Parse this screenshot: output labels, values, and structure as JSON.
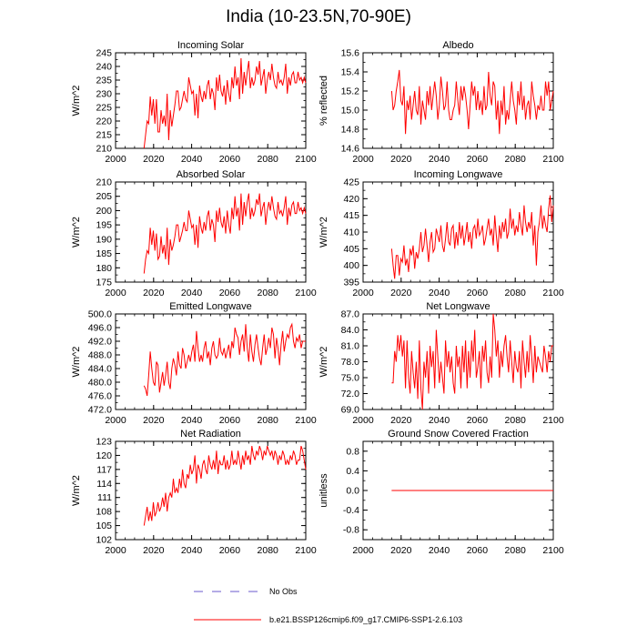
{
  "figure": {
    "title": "India (10-23.5N,70-90E)",
    "line_color": "#ff0000",
    "obs_color": "#6a5acd",
    "legend": [
      {
        "label": "No Obs",
        "style": "dashed",
        "color": "#6a5acd"
      },
      {
        "label": "b.e21.BSSP126cmip6.f09_g17.CMIP6-SSP1-2.6.103",
        "style": "solid",
        "color": "#ff0000"
      }
    ]
  },
  "chart_data": [
    {
      "type": "line",
      "title": "Incoming Solar",
      "xlabel": "",
      "ylabel": "W/m^2",
      "xlim": [
        2000,
        2100
      ],
      "ylim": [
        210,
        245
      ],
      "xticks": [
        2000,
        2020,
        2040,
        2060,
        2080,
        2100
      ],
      "yticks": [
        210,
        215,
        220,
        225,
        230,
        235,
        240,
        245
      ],
      "yticklabels": [
        "210",
        "215",
        "220",
        "225",
        "230",
        "235",
        "240",
        "245"
      ],
      "x_start": 2015,
      "values": [
        210,
        215,
        220,
        219,
        229,
        222,
        228,
        219,
        228,
        216,
        216,
        224,
        219,
        222,
        218,
        230,
        213,
        224,
        218,
        222,
        226,
        231,
        231,
        224,
        225,
        228,
        231,
        228,
        227,
        236,
        233,
        230,
        231,
        222,
        230,
        221,
        233,
        229,
        227,
        231,
        228,
        233,
        235,
        228,
        232,
        230,
        224,
        236,
        231,
        237,
        231,
        229,
        233,
        226,
        235,
        230,
        227,
        236,
        232,
        240,
        233,
        236,
        228,
        243,
        230,
        238,
        233,
        238,
        242,
        232,
        236,
        233,
        235,
        240,
        237,
        242,
        233,
        236,
        239,
        230,
        235,
        238,
        235,
        241,
        236,
        233,
        232,
        238,
        234,
        235,
        233,
        236,
        241,
        230,
        236,
        233,
        237,
        238,
        234,
        234,
        238,
        235,
        236,
        234,
        236,
        234
      ]
    },
    {
      "type": "line",
      "title": "Albedo",
      "xlabel": "",
      "ylabel": "% reflected",
      "xlim": [
        2000,
        2100
      ],
      "ylim": [
        14.6,
        15.6
      ],
      "xticks": [
        2000,
        2020,
        2040,
        2060,
        2080,
        2100
      ],
      "yticks": [
        14.6,
        14.8,
        15.0,
        15.2,
        15.4,
        15.6
      ],
      "yticklabels": [
        "14.6",
        "14.8",
        "15.0",
        "15.2",
        "15.4",
        "15.6"
      ],
      "x_start": 2015,
      "values": [
        15.2,
        15.0,
        15.05,
        15.2,
        15.3,
        15.42,
        15.1,
        15.05,
        15.25,
        14.75,
        15.1,
        15.0,
        15.15,
        14.9,
        15.05,
        15.2,
        15.0,
        14.95,
        15.25,
        14.85,
        15.1,
        15.0,
        14.9,
        15.2,
        15.05,
        15.25,
        15.0,
        15.15,
        15.3,
        15.15,
        14.9,
        15.05,
        15.35,
        15.2,
        15.0,
        15.05,
        15.3,
        15.0,
        14.9,
        14.9,
        15.0,
        15.05,
        15.3,
        15.1,
        14.95,
        15.25,
        15.1,
        15.25,
        15.15,
        15.0,
        14.8,
        15.05,
        15.3,
        15.15,
        15.25,
        15.0,
        15.2,
        15.0,
        15.1,
        14.95,
        15.25,
        15.0,
        15.05,
        15.4,
        15.15,
        15.05,
        15.3,
        15.25,
        14.9,
        15.1,
        14.75,
        15.1,
        14.95,
        15.25,
        14.85,
        15.0,
        14.9,
        15.1,
        15.3,
        15.1,
        15.0,
        14.85,
        15.2,
        15.05,
        15.3,
        15.0,
        15.15,
        14.9,
        15.05,
        15.1,
        14.9,
        15.3,
        15.15,
        15.05,
        14.9,
        15.05,
        15.0,
        15.15,
        15.0,
        15.0,
        15.3,
        15.15,
        15.3,
        15.0,
        15.1,
        15.2
      ]
    },
    {
      "type": "line",
      "title": "Absorbed Solar",
      "xlabel": "",
      "ylabel": "W/m^2",
      "xlim": [
        2000,
        2100
      ],
      "ylim": [
        175,
        210
      ],
      "xticks": [
        2000,
        2020,
        2040,
        2060,
        2080,
        2100
      ],
      "yticks": [
        175,
        180,
        185,
        190,
        195,
        200,
        205,
        210
      ],
      "yticklabels": [
        "175",
        "180",
        "185",
        "190",
        "195",
        "200",
        "205",
        "210"
      ],
      "x_start": 2015,
      "values": [
        178,
        183,
        186,
        185,
        194,
        188,
        193,
        186,
        192,
        183,
        184,
        191,
        185,
        188,
        183,
        194,
        181,
        190,
        186,
        188,
        191,
        195,
        195,
        189,
        191,
        193,
        196,
        193,
        193,
        200,
        197,
        194,
        195,
        188,
        195,
        187,
        198,
        194,
        192,
        196,
        193,
        198,
        200,
        193,
        197,
        195,
        189,
        200,
        196,
        201,
        196,
        194,
        198,
        192,
        200,
        195,
        192,
        201,
        197,
        205,
        198,
        201,
        193,
        206,
        195,
        203,
        198,
        203,
        206,
        197,
        201,
        198,
        200,
        204,
        202,
        206,
        198,
        201,
        203,
        195,
        200,
        203,
        200,
        205,
        201,
        198,
        197,
        203,
        199,
        200,
        198,
        201,
        205,
        195,
        201,
        198,
        202,
        203,
        199,
        199,
        203,
        200,
        201,
        199,
        201,
        199
      ]
    },
    {
      "type": "line",
      "title": "Incoming Longwave",
      "xlabel": "",
      "ylabel": "W/m^2",
      "xlim": [
        2000,
        2100
      ],
      "ylim": [
        395,
        425
      ],
      "xticks": [
        2000,
        2020,
        2040,
        2060,
        2080,
        2100
      ],
      "yticks": [
        395,
        400,
        405,
        410,
        415,
        420,
        425
      ],
      "yticklabels": [
        "395",
        "400",
        "405",
        "410",
        "415",
        "420",
        "425"
      ],
      "x_start": 2015,
      "values": [
        405,
        400,
        396,
        403,
        403,
        397,
        402,
        401,
        406,
        400,
        402,
        398,
        405,
        403,
        406,
        399,
        404,
        402,
        405,
        410,
        404,
        406,
        411,
        406,
        401,
        407,
        410,
        404,
        405,
        411,
        409,
        407,
        412,
        406,
        404,
        408,
        413,
        407,
        406,
        411,
        412,
        405,
        410,
        406,
        413,
        408,
        412,
        406,
        409,
        413,
        407,
        410,
        405,
        411,
        412,
        408,
        414,
        409,
        410,
        412,
        406,
        408,
        411,
        414,
        409,
        411,
        406,
        415,
        409,
        404,
        412,
        408,
        413,
        410,
        414,
        408,
        410,
        417,
        411,
        414,
        409,
        412,
        410,
        416,
        412,
        409,
        418,
        413,
        410,
        413,
        411,
        416,
        406,
        412,
        400,
        410,
        413,
        418,
        411,
        415,
        412,
        410,
        417,
        421,
        413,
        418
      ]
    },
    {
      "type": "line",
      "title": "Emitted Longwave",
      "xlabel": "",
      "ylabel": "W/m^2",
      "xlim": [
        2000,
        2100
      ],
      "ylim": [
        472,
        500
      ],
      "xticks": [
        2000,
        2020,
        2040,
        2060,
        2080,
        2100
      ],
      "yticks": [
        472,
        476,
        480,
        484,
        488,
        492,
        496,
        500
      ],
      "yticklabels": [
        "472.0",
        "476.0",
        "480.0",
        "484.0",
        "488.0",
        "492.0",
        "496.0",
        "500.0"
      ],
      "x_start": 2015,
      "values": [
        479,
        478,
        476,
        482,
        489,
        484,
        480,
        479,
        486,
        485,
        477,
        480,
        483,
        479,
        482,
        486,
        480,
        478,
        484,
        487,
        485,
        482,
        489,
        485,
        484,
        490,
        488,
        484,
        486,
        488,
        486,
        489,
        491,
        486,
        495,
        490,
        486,
        488,
        486,
        490,
        492,
        487,
        489,
        485,
        490,
        492,
        488,
        487,
        488,
        493,
        489,
        488,
        490,
        487,
        489,
        491,
        487,
        492,
        490,
        496,
        494,
        493,
        488,
        492,
        494,
        489,
        497,
        490,
        486,
        494,
        489,
        486,
        491,
        494,
        490,
        487,
        485,
        490,
        494,
        488,
        490,
        493,
        490,
        496,
        494,
        487,
        493,
        490,
        485,
        491,
        495,
        489,
        492,
        494,
        493,
        496,
        497,
        492,
        490,
        493,
        492,
        494,
        490,
        492,
        492,
        492
      ]
    },
    {
      "type": "line",
      "title": "Net Longwave",
      "xlabel": "",
      "ylabel": "W/m^2",
      "xlim": [
        2000,
        2100
      ],
      "ylim": [
        69,
        87
      ],
      "xticks": [
        2000,
        2020,
        2040,
        2060,
        2080,
        2100
      ],
      "yticks": [
        69,
        72,
        75,
        78,
        81,
        84,
        87
      ],
      "yticklabels": [
        "69.0",
        "72.0",
        "75.0",
        "78.0",
        "81.0",
        "84.0",
        "87.0"
      ],
      "x_start": 2015,
      "values": [
        74,
        74,
        80,
        78,
        83,
        80,
        83,
        79,
        82,
        73,
        82,
        75,
        72,
        80,
        76,
        73,
        78,
        71,
        82,
        73,
        69,
        78,
        75,
        80,
        72,
        81,
        77,
        80,
        73,
        84,
        79,
        74,
        78,
        75,
        72,
        82,
        77,
        80,
        76,
        79,
        74,
        72,
        81,
        77,
        79,
        73,
        81,
        76,
        82,
        73,
        80,
        75,
        82,
        78,
        84,
        75,
        77,
        80,
        73,
        81,
        78,
        82,
        76,
        74,
        79,
        75,
        87,
        84,
        79,
        82,
        75,
        80,
        77,
        81,
        83,
        79,
        76,
        82,
        78,
        74,
        80,
        77,
        76,
        80,
        73,
        82,
        78,
        75,
        80,
        76,
        83,
        79,
        74,
        81,
        76,
        79,
        78,
        77,
        76,
        81,
        79,
        76,
        80,
        78,
        81,
        81
      ]
    },
    {
      "type": "line",
      "title": "Net Radiation",
      "xlabel": "",
      "ylabel": "W/m^2",
      "xlim": [
        2000,
        2100
      ],
      "ylim": [
        102,
        123
      ],
      "xticks": [
        2000,
        2020,
        2040,
        2060,
        2080,
        2100
      ],
      "yticks": [
        102,
        105,
        108,
        111,
        114,
        117,
        120,
        123
      ],
      "yticklabels": [
        "102",
        "105",
        "108",
        "111",
        "114",
        "117",
        "120",
        "123"
      ],
      "x_start": 2015,
      "values": [
        105,
        107,
        109,
        106,
        108,
        106,
        110,
        107,
        108,
        110,
        108,
        109,
        111,
        109,
        112,
        108,
        111,
        112,
        111,
        115,
        112,
        113,
        112,
        115,
        113,
        117,
        114,
        113,
        116,
        115,
        118,
        116,
        117,
        120,
        114,
        118,
        117,
        115,
        118,
        119,
        117,
        116,
        120,
        118,
        117,
        119,
        117,
        121,
        116,
        119,
        118,
        118,
        120,
        117,
        119,
        117,
        118,
        121,
        118,
        119,
        118,
        121,
        119,
        117,
        120,
        118,
        121,
        119,
        120,
        118,
        122,
        120,
        119,
        121,
        120,
        122,
        121,
        119,
        121,
        120,
        122,
        121,
        120,
        121,
        119,
        121,
        120,
        118,
        120,
        119,
        121,
        120,
        118,
        119,
        118,
        120,
        119,
        121,
        120,
        118,
        119,
        119,
        122,
        121,
        119,
        117
      ]
    },
    {
      "type": "line",
      "title": "Ground Snow Covered Fraction",
      "xlabel": "",
      "ylabel": "unitless",
      "xlim": [
        2000,
        2100
      ],
      "ylim": [
        -1,
        1
      ],
      "xticks": [
        2000,
        2020,
        2040,
        2060,
        2080,
        2100
      ],
      "yticks": [
        -0.8,
        -0.4,
        0.0,
        0.4,
        0.8
      ],
      "yticklabels": [
        "-0.8",
        "-0.4",
        "0.0",
        "0.4",
        "0.8"
      ],
      "x_start": 2015,
      "constant": 0.0,
      "x_end": 2100
    }
  ]
}
